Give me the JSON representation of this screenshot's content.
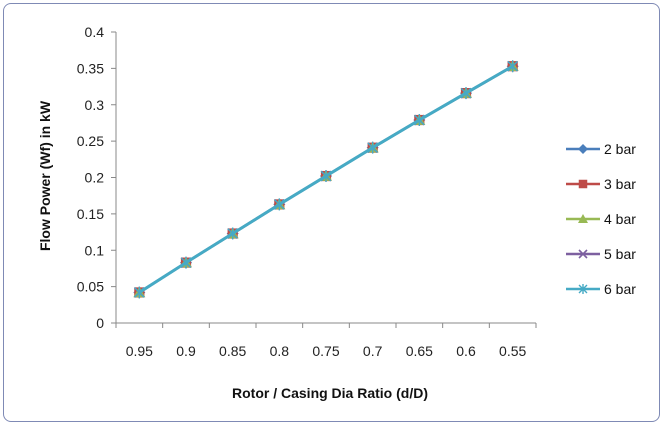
{
  "chart_data": {
    "type": "line",
    "title": "",
    "xlabel": "Rotor / Casing Dia Ratio (d/D)",
    "ylabel": "Flow Power (Wf) in kW",
    "categories": [
      "0.95",
      "0.9",
      "0.85",
      "0.8",
      "0.75",
      "0.7",
      "0.65",
      "0.6",
      "0.55"
    ],
    "ylim": [
      0,
      0.4
    ],
    "yticks": [
      "0",
      "0.05",
      "0.1",
      "0.15",
      "0.2",
      "0.25",
      "0.3",
      "0.35",
      "0.4"
    ],
    "grid": false,
    "legend_position": "right",
    "series": [
      {
        "name": "2 bar",
        "color": "#4a7ebb",
        "marker": "diamond",
        "values": [
          0.042,
          0.083,
          0.123,
          0.163,
          0.202,
          0.241,
          0.279,
          0.316,
          0.353
        ]
      },
      {
        "name": "3 bar",
        "color": "#be4b48",
        "marker": "square",
        "values": [
          0.042,
          0.083,
          0.123,
          0.163,
          0.202,
          0.241,
          0.279,
          0.316,
          0.353
        ]
      },
      {
        "name": "4 bar",
        "color": "#98b954",
        "marker": "triangle",
        "values": [
          0.042,
          0.083,
          0.123,
          0.163,
          0.202,
          0.241,
          0.279,
          0.316,
          0.353
        ]
      },
      {
        "name": "5 bar",
        "color": "#7d60a0",
        "marker": "x",
        "values": [
          0.042,
          0.083,
          0.123,
          0.163,
          0.202,
          0.241,
          0.279,
          0.316,
          0.353
        ]
      },
      {
        "name": "6 bar",
        "color": "#46aac5",
        "marker": "star",
        "values": [
          0.042,
          0.083,
          0.123,
          0.163,
          0.202,
          0.241,
          0.279,
          0.316,
          0.353
        ]
      }
    ]
  }
}
